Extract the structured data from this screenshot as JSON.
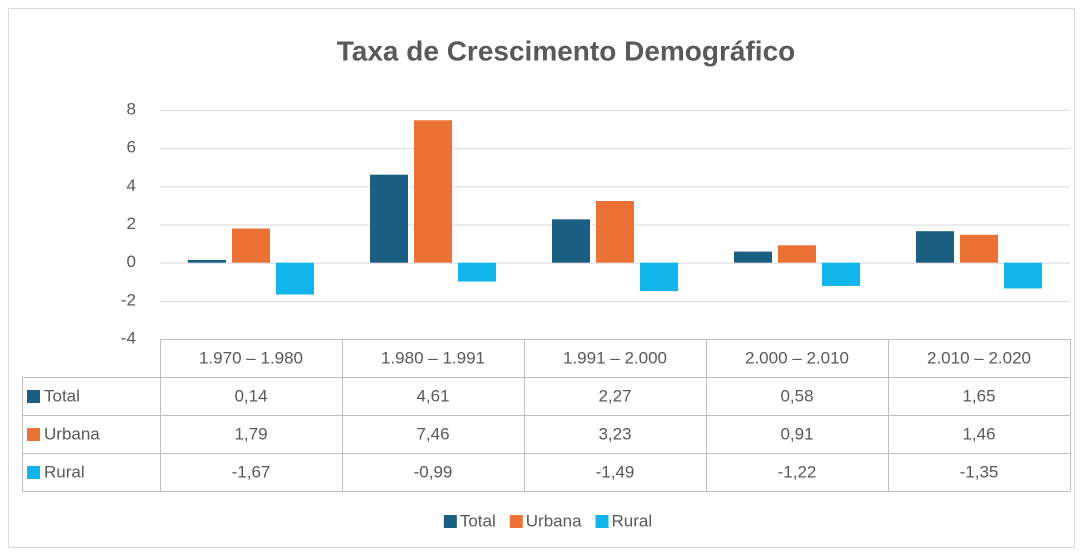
{
  "chart_data": {
    "type": "bar",
    "title": "Taxa de Crescimento Demográfico",
    "categories": [
      "1.970 – 1.980",
      "1.980 – 1.991",
      "1.991 – 2.000",
      "2.000 – 2.010",
      "2.010 – 2.020"
    ],
    "series": [
      {
        "name": "Total",
        "color": "#1a5f82",
        "values": [
          0.14,
          4.61,
          2.27,
          0.58,
          1.65
        ],
        "value_labels": [
          "0,14",
          "4,61",
          "2,27",
          "0,58",
          "1,65"
        ]
      },
      {
        "name": "Urbana",
        "color": "#ec7134",
        "values": [
          1.79,
          7.46,
          3.23,
          0.91,
          1.46
        ],
        "value_labels": [
          "1,79",
          "7,46",
          "3,23",
          "0,91",
          "1,46"
        ]
      },
      {
        "name": "Rural",
        "color": "#11b5ec",
        "values": [
          -1.67,
          -0.99,
          -1.49,
          -1.22,
          -1.35
        ],
        "value_labels": [
          "-1,67",
          "-0,99",
          "-1,49",
          "-1,22",
          "-1,35"
        ]
      }
    ],
    "ylim": [
      -4,
      8
    ],
    "yticks": [
      -4,
      -2,
      0,
      2,
      4,
      6,
      8
    ],
    "grid": true,
    "legend": "bottom",
    "data_table": true
  }
}
